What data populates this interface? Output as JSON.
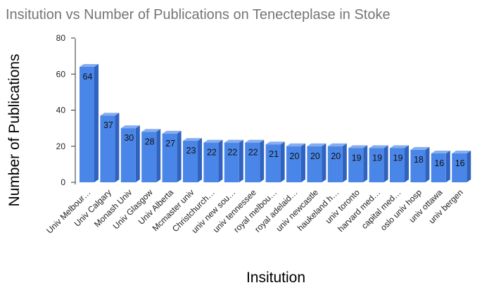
{
  "chart_data": {
    "type": "bar",
    "style": "3d-column",
    "title": "Insitution vs Number of Publications on Tenecteplase in Stoke",
    "xlabel": "Insitution",
    "ylabel": "Number of Publications",
    "ylim": [
      0,
      80
    ],
    "yticks": [
      0,
      20,
      40,
      60,
      80
    ],
    "grid": false,
    "legend": "none",
    "colors": {
      "bar_front": "#4a86e8",
      "bar_side": "#2f63bf",
      "bar_top": "#86adf0",
      "axis": "#333333",
      "title": "#757575"
    },
    "categories": [
      "Univ Melbour…",
      "Univ Calgary",
      "Monash Univ",
      "Univ Glasgow",
      "Univ Alberta",
      "Mcmaster univ",
      "Christchurch…",
      "univ new sou…",
      "univ tennessee",
      "royal melbou…",
      "royal adelaid…",
      "univ newcastle",
      "haukeland h…",
      "univ toronto",
      "harvard med…",
      "capital med…",
      "oslo univ hosp",
      "univ ottawa",
      "univ bergen"
    ],
    "values": [
      64,
      37,
      30,
      28,
      27,
      23,
      22,
      22,
      22,
      21,
      20,
      20,
      20,
      19,
      19,
      19,
      18,
      16,
      16
    ]
  }
}
